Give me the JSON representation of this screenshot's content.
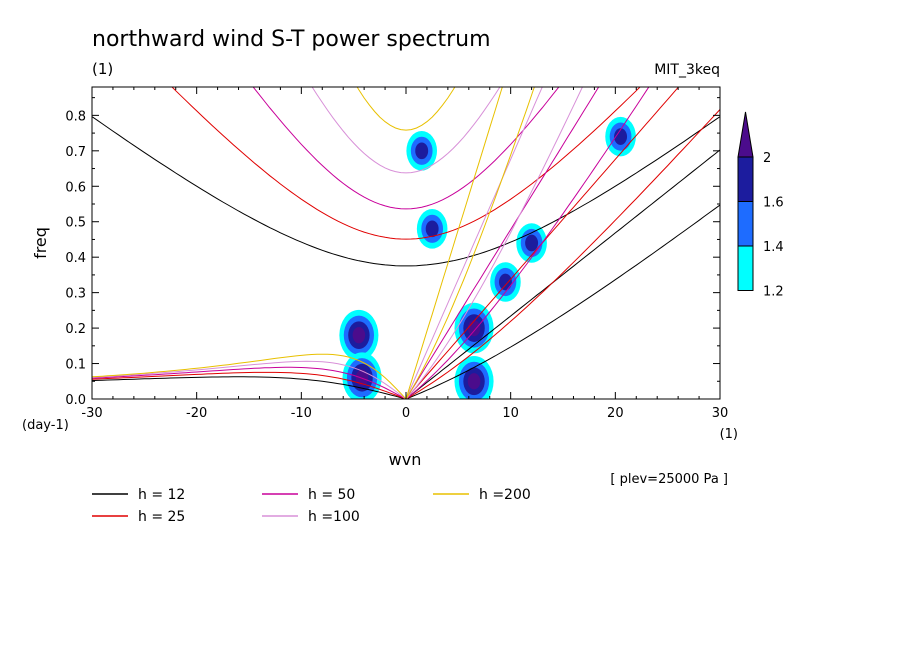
{
  "chart_data": {
    "type": "line",
    "title": "northward wind S-T power spectrum",
    "subtitle_left": "(1)",
    "subtitle_right": "MIT_3keq",
    "xlabel": "wvn",
    "ylabel": "freq",
    "x_unit": "(1)",
    "y_unit": "(day-1)",
    "xlim": [
      -30,
      30
    ],
    "ylim": [
      0,
      0.88
    ],
    "x_ticks": [
      -30,
      -20,
      -10,
      0,
      10,
      20,
      30
    ],
    "x_tick_labels": [
      "-30",
      "-20",
      "-10",
      "0",
      "10",
      "20",
      "30"
    ],
    "y_ticks": [
      0,
      0.1,
      0.2,
      0.3,
      0.4,
      0.5,
      0.6,
      0.7,
      0.8
    ],
    "y_tick_labels": [
      "0.0",
      "0.1",
      "0.2",
      "0.3",
      "0.4",
      "0.5",
      "0.6",
      "0.7",
      "0.8"
    ],
    "annotation": "[ plev=25000 Pa ]",
    "colorbar": {
      "levels": [
        1.2,
        1.4,
        1.6,
        2
      ],
      "labels": [
        "1.2",
        "1.4",
        "1.6",
        "2"
      ],
      "colors": [
        "#00ffff",
        "#1e6cff",
        "#1c1c9e",
        "#4b0c8c"
      ]
    },
    "series": [
      {
        "name": "h = 12",
        "h": 12,
        "color": "#000000"
      },
      {
        "name": "h = 25",
        "h": 25,
        "color": "#e00000"
      },
      {
        "name": "h = 50",
        "h": 50,
        "color": "#c8009a"
      },
      {
        "name": "h =100",
        "h": 100,
        "color": "#d890d8"
      },
      {
        "name": "h =200",
        "h": 200,
        "color": "#e8c000"
      }
    ],
    "spectral_peaks": [
      {
        "x": -4.5,
        "y": 0.18,
        "level": 2
      },
      {
        "x": -4.2,
        "y": 0.06,
        "level": 2
      },
      {
        "x": 6.5,
        "y": 0.05,
        "level": 2
      },
      {
        "x": 6.5,
        "y": 0.2,
        "level": 2
      },
      {
        "x": 9.5,
        "y": 0.33,
        "level": 1.6
      },
      {
        "x": 12,
        "y": 0.44,
        "level": 1.6
      },
      {
        "x": 20.5,
        "y": 0.74,
        "level": 1.6
      },
      {
        "x": 1.5,
        "y": 0.7,
        "level": 1.6
      },
      {
        "x": 2.5,
        "y": 0.48,
        "level": 1.6
      }
    ]
  }
}
